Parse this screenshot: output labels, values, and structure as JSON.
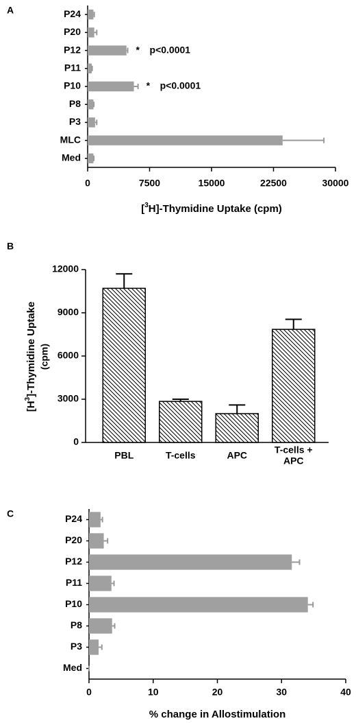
{
  "chart_data": [
    {
      "type": "barh",
      "panel": "A",
      "categories": [
        "P24",
        "P20",
        "P12",
        "P11",
        "P10",
        "P8",
        "P3",
        "MLC",
        "Med"
      ],
      "values": [
        700,
        800,
        4700,
        500,
        5600,
        700,
        900,
        23600,
        700
      ],
      "errors": [
        100,
        300,
        150,
        50,
        500,
        50,
        200,
        5000,
        50
      ],
      "color": "#a0a0a0",
      "error_color": "#999999",
      "xlim": [
        0,
        30000
      ],
      "xticks": [
        0,
        7500,
        15000,
        22500,
        30000
      ],
      "xlabel": [
        "[",
        "3",
        "H]-Thymidine Uptake (cpm)"
      ],
      "annotations": [
        {
          "category": "P12",
          "marker": "*",
          "text": "p<0.0001"
        },
        {
          "category": "P10",
          "marker": "*",
          "text": "p<0.0001"
        }
      ]
    },
    {
      "type": "bar",
      "panel": "B",
      "categories": [
        "PBL",
        "T-cells",
        "APC",
        [
          "T-cells +",
          "APC"
        ]
      ],
      "values": [
        10700,
        2850,
        2000,
        7850
      ],
      "errors": [
        1000,
        150,
        600,
        700
      ],
      "color": "#ffffff",
      "hatch": true,
      "error_color": "#000000",
      "ylim": [
        0,
        12000
      ],
      "yticks": [
        0,
        3000,
        6000,
        9000,
        12000
      ],
      "ylabel": [
        "[H",
        "3",
        "]-Thymidine Uptake",
        "(cpm)"
      ]
    },
    {
      "type": "barh",
      "panel": "C",
      "categories": [
        "P24",
        "P20",
        "P12",
        "P11",
        "P10",
        "P8",
        "P3",
        "Med"
      ],
      "values": [
        1.8,
        2.3,
        31.6,
        3.5,
        34.1,
        3.6,
        1.5,
        0
      ],
      "errors": [
        0.3,
        0.6,
        1.2,
        0.4,
        0.8,
        0.4,
        0.5,
        0
      ],
      "color": "#a0a0a0",
      "error_color": "#999999",
      "xlim": [
        0,
        40
      ],
      "xticks": [
        0,
        10,
        20,
        30,
        40
      ],
      "xlabel": [
        "% change in Allostimulation"
      ]
    }
  ]
}
